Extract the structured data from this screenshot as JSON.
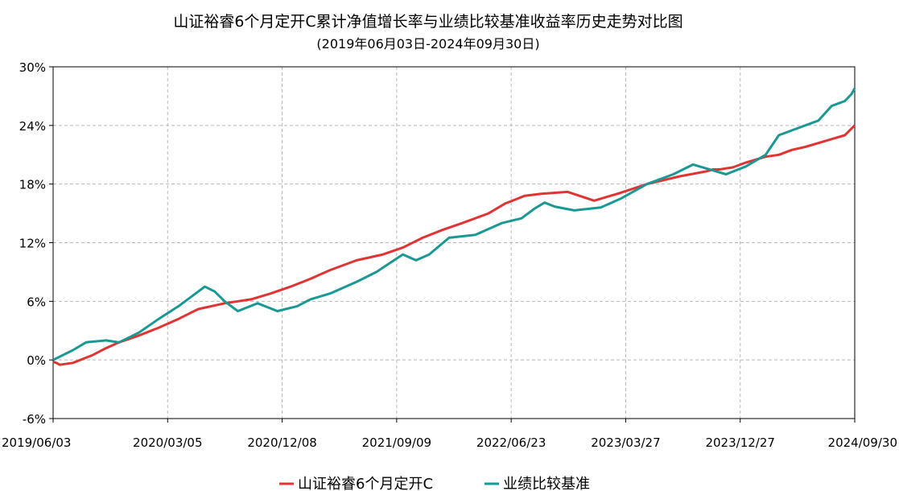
{
  "chart_data": {
    "type": "line",
    "title": "山证裕睿6个月定开C累计净值增长率与业绩比较基准收益率历史走势对比图",
    "subtitle": "(2019年06月03日-2024年09月30日)",
    "x_labels": [
      "2019/06/03",
      "2020/03/05",
      "2020/12/08",
      "2021/09/09",
      "2022/06/23",
      "2023/03/27",
      "2023/12/27",
      "2024/09/30"
    ],
    "y_ticks": [
      "30%",
      "24%",
      "18%",
      "12%",
      "6%",
      "0%",
      "-6%"
    ],
    "ylim": [
      -6,
      30
    ],
    "grid": true,
    "legend_position": "bottom",
    "series": [
      {
        "name": "山证裕睿6个月定开C",
        "color": "#e03434",
        "x": [
          0,
          0.05,
          0.1,
          0.3,
          0.6,
          0.8,
          1.0,
          1.3,
          1.6,
          1.9,
          2.2,
          2.6,
          3.0,
          3.3,
          3.6,
          3.9,
          4.2,
          4.6,
          5.0,
          5.3,
          5.6,
          5.9,
          6.2,
          6.6,
          6.85,
          7.0,
          7.15,
          7.4,
          7.8,
          8.2,
          8.6,
          9.0,
          9.5,
          9.9,
          10.0,
          10.1,
          10.2,
          10.3,
          10.5,
          10.8,
          11.0,
          11.2,
          11.4,
          11.6,
          11.8,
          12.0,
          12.15
        ],
        "y": [
          -0.2,
          -0.3,
          -0.5,
          -0.3,
          0.5,
          1.2,
          1.8,
          2.5,
          3.3,
          4.2,
          5.2,
          5.8,
          6.2,
          6.8,
          7.5,
          8.3,
          9.2,
          10.2,
          10.8,
          11.5,
          12.5,
          13.3,
          14.0,
          15.0,
          16.0,
          16.4,
          16.8,
          17.0,
          17.2,
          16.3,
          17.1,
          18.0,
          18.8,
          19.3,
          19.5,
          19.5,
          19.6,
          19.7,
          20.2,
          20.8,
          21.0,
          21.5,
          21.8,
          22.2,
          22.6,
          23.0,
          24.0
        ]
      },
      {
        "name": "业绩比较基准",
        "color": "#1a9893",
        "x": [
          0,
          0.3,
          0.5,
          0.8,
          1.0,
          1.3,
          1.6,
          1.9,
          2.1,
          2.3,
          2.45,
          2.6,
          2.8,
          3.1,
          3.4,
          3.7,
          3.9,
          4.2,
          4.6,
          4.9,
          5.3,
          5.5,
          5.7,
          6.0,
          6.4,
          6.8,
          7.1,
          7.3,
          7.45,
          7.6,
          7.9,
          8.3,
          8.6,
          9.0,
          9.4,
          9.7,
          10.0,
          10.2,
          10.5,
          10.8,
          11.0,
          11.2,
          11.4,
          11.6,
          11.8,
          12.0,
          12.1,
          12.15
        ],
        "y": [
          0.0,
          1.0,
          1.8,
          2.0,
          1.8,
          2.8,
          4.2,
          5.5,
          6.5,
          7.5,
          7.0,
          6.0,
          5.0,
          5.8,
          5.0,
          5.5,
          6.2,
          6.8,
          8.0,
          9.0,
          10.8,
          10.2,
          10.8,
          12.5,
          12.8,
          14.0,
          14.5,
          15.5,
          16.1,
          15.7,
          15.3,
          15.6,
          16.5,
          18.0,
          19.0,
          20.0,
          19.4,
          19.0,
          19.8,
          21.0,
          23.0,
          23.5,
          24.0,
          24.5,
          26.0,
          26.5,
          27.2,
          27.8
        ]
      }
    ]
  }
}
